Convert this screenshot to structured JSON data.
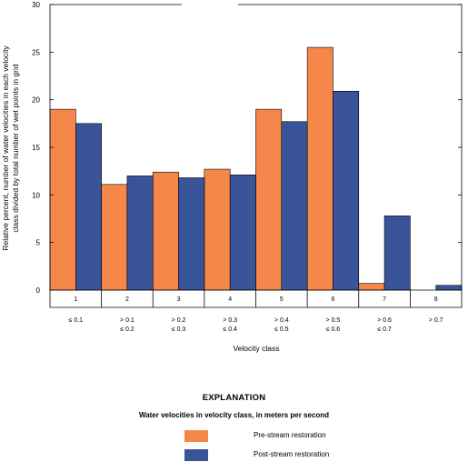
{
  "colors": {
    "pre": "#F5874A",
    "post": "#3A5499",
    "axis": "#000000"
  },
  "chart_data": {
    "type": "bar",
    "ylabel_line1": "Relative percent, number of water velocities in each velocity",
    "ylabel_line2": "class divided by total number of wet points in grid",
    "xlabel": "Velocity class",
    "ylim": [
      0,
      30
    ],
    "yticks": [
      "0",
      "5",
      "10",
      "15",
      "20",
      "25",
      "30"
    ],
    "categories": [
      "1",
      "2",
      "3",
      "4",
      "5",
      "6",
      "7",
      "8"
    ],
    "ranges": [
      [
        "≤ 0.1",
        ""
      ],
      [
        "> 0.1",
        "≤ 0.2"
      ],
      [
        "> 0.2",
        "≤ 0.3"
      ],
      [
        "> 0.3",
        "≤ 0.4"
      ],
      [
        "> 0.4",
        "≤ 0.5"
      ],
      [
        "> 0.5",
        "≤ 0.6"
      ],
      [
        "> 0.6",
        "≤ 0.7"
      ],
      [
        "> 0.7",
        ""
      ]
    ],
    "series": [
      {
        "name": "Pre-stream restoration",
        "values": [
          19.0,
          11.1,
          12.4,
          12.7,
          19.0,
          25.5,
          0.7,
          0.0
        ]
      },
      {
        "name": "Post-stream restoration",
        "values": [
          17.5,
          12.0,
          11.8,
          12.1,
          17.7,
          20.9,
          7.8,
          0.5
        ]
      }
    ],
    "grid": false,
    "legend_position": "bottom"
  },
  "legend": {
    "heading": "EXPLANATION",
    "subheading": "Water velocities in velocity class, in meters per second"
  }
}
